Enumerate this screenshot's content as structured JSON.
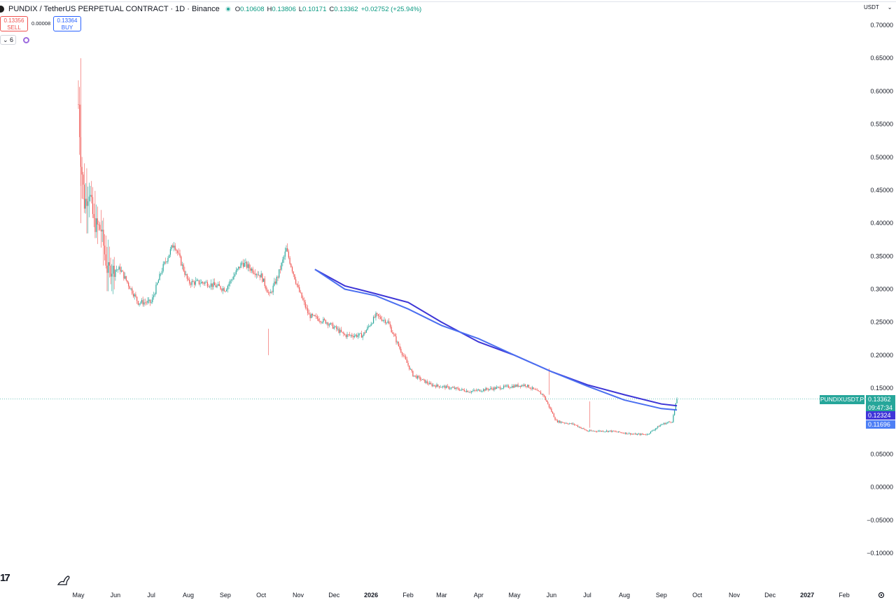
{
  "header": {
    "title": "PUNDIX / TetherUS PERPETUAL CONTRACT · 1D · Binance",
    "ohlc": [
      {
        "k": "O",
        "v": "0.10608"
      },
      {
        "k": "H",
        "v": "0.13806"
      },
      {
        "k": "L",
        "v": "0.10171"
      },
      {
        "k": "C",
        "v": "0.13362"
      },
      {
        "k": "",
        "v": "+0.02752 (+25.94%)"
      }
    ]
  },
  "trade": {
    "sell_price": "0.13356",
    "sell_label": "SELL",
    "spread": "0.00008",
    "buy_price": "0.13364",
    "buy_label": "BUY"
  },
  "indicators": {
    "count": "6"
  },
  "currency_button": {
    "label": "USDT",
    "arrow": "⌄"
  },
  "price_tags": {
    "last_symbol": "PUNDIXUSDT.P",
    "last_price": "0.13362",
    "countdown": "09:47:34",
    "ma1": "0.12324",
    "ma2": "0.11696"
  },
  "colors": {
    "up": "#26a69a",
    "down": "#ef5350",
    "ma_dark": "#3d35d6",
    "ma_light": "#4b6ff0",
    "ma1_tag": "#3f35d9",
    "ma2_tag": "#4d7ff5"
  },
  "chart_data": {
    "type": "candlestick",
    "y_ticks": [
      "0.70000",
      "0.65000",
      "0.60000",
      "0.55000",
      "0.50000",
      "0.45000",
      "0.40000",
      "0.35000",
      "0.30000",
      "0.25000",
      "0.20000",
      "0.15000",
      "0.05000",
      "0.00000",
      "−0.05000",
      "−0.10000"
    ],
    "x_ticks": [
      "May",
      "Jun",
      "Jul",
      "Aug",
      "Sep",
      "Oct",
      "Nov",
      "Dec",
      "2026",
      "Feb",
      "Mar",
      "Apr",
      "May",
      "Jun",
      "Jul",
      "Aug",
      "Sep",
      "Oct",
      "Nov",
      "Dec",
      "2027",
      "Feb"
    ],
    "ylim": [
      -0.1,
      0.7
    ],
    "last_price": 0.13362,
    "price_path": [
      [
        "2025-05-01",
        0.58
      ],
      [
        "2025-05-03",
        0.5
      ],
      [
        "2025-05-06",
        0.43
      ],
      [
        "2025-05-10",
        0.45
      ],
      [
        "2025-05-14",
        0.4
      ],
      [
        "2025-05-20",
        0.39
      ],
      [
        "2025-05-25",
        0.33
      ],
      [
        "2025-06-05",
        0.33
      ],
      [
        "2025-06-20",
        0.28
      ],
      [
        "2025-07-01",
        0.28
      ],
      [
        "2025-07-10",
        0.33
      ],
      [
        "2025-07-20",
        0.37
      ],
      [
        "2025-08-01",
        0.31
      ],
      [
        "2025-08-15",
        0.31
      ],
      [
        "2025-09-01",
        0.3
      ],
      [
        "2025-09-15",
        0.34
      ],
      [
        "2025-10-01",
        0.32
      ],
      [
        "2025-10-08",
        0.29
      ],
      [
        "2025-10-15",
        0.32
      ],
      [
        "2025-10-22",
        0.36
      ],
      [
        "2025-11-01",
        0.3
      ],
      [
        "2025-11-10",
        0.26
      ],
      [
        "2025-11-25",
        0.25
      ],
      [
        "2025-12-10",
        0.23
      ],
      [
        "2025-12-25",
        0.23
      ],
      [
        "2026-01-05",
        0.26
      ],
      [
        "2026-01-15",
        0.25
      ],
      [
        "2026-01-25",
        0.21
      ],
      [
        "2026-02-05",
        0.17
      ],
      [
        "2026-02-20",
        0.155
      ],
      [
        "2026-03-10",
        0.15
      ],
      [
        "2026-03-25",
        0.145
      ],
      [
        "2026-04-15",
        0.15
      ],
      [
        "2026-05-10",
        0.155
      ],
      [
        "2026-05-25",
        0.14
      ],
      [
        "2026-06-05",
        0.1
      ],
      [
        "2026-06-20",
        0.095
      ],
      [
        "2026-07-01",
        0.085
      ],
      [
        "2026-07-20",
        0.085
      ],
      [
        "2026-08-10",
        0.08
      ],
      [
        "2026-08-20",
        0.08
      ],
      [
        "2026-09-01",
        0.095
      ],
      [
        "2026-09-10",
        0.1
      ],
      [
        "2026-09-14",
        0.1336
      ]
    ],
    "ma_lines": [
      {
        "value_now": 0.12324,
        "color": "ma1"
      },
      {
        "value_now": 0.11696,
        "color": "ma2"
      }
    ]
  }
}
